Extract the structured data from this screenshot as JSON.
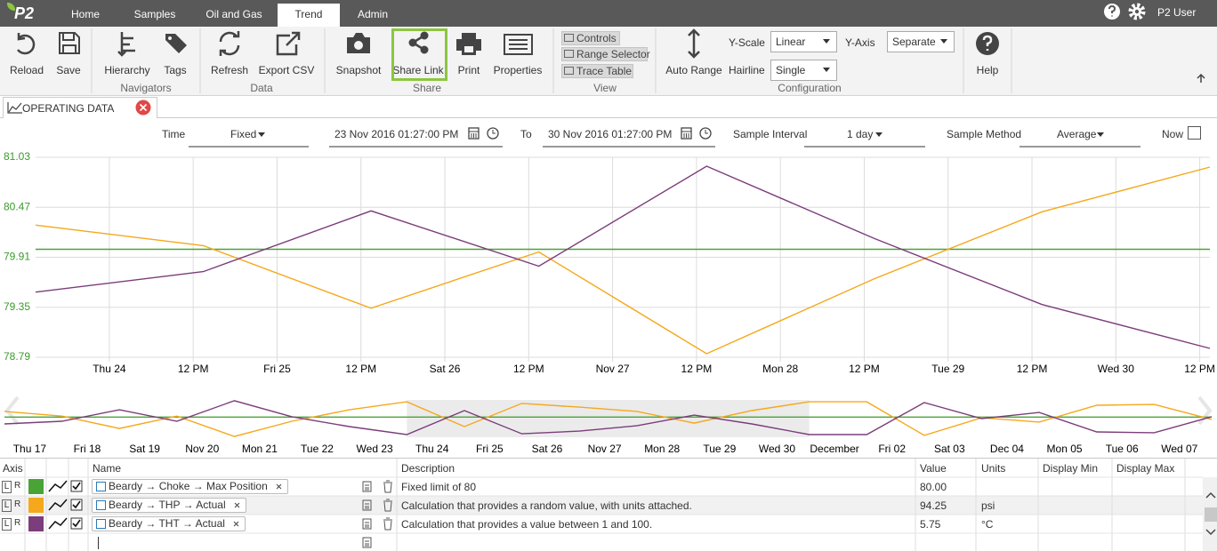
{
  "header": {
    "logo": "P2",
    "tabs": [
      "Home",
      "Samples",
      "Oil and Gas",
      "Trend",
      "Admin"
    ],
    "user": "P2 User"
  },
  "ribbon": {
    "groups": [
      {
        "buttons": [
          "Reload",
          "Save"
        ]
      },
      {
        "label": "Navigators",
        "buttons": [
          "Hierarchy",
          "Tags"
        ]
      },
      {
        "label": "Data",
        "buttons": [
          "Refresh",
          "Export CSV"
        ]
      },
      {
        "label": "Share",
        "buttons": [
          "Snapshot",
          "Share Link",
          "Print",
          "Properties"
        ]
      },
      {
        "label": "View",
        "buttons": [
          "Controls",
          "Range Selector",
          "Trace Table"
        ]
      },
      {
        "label": "Configuration",
        "buttons": [
          "Auto Range"
        ],
        "fields": [
          {
            "label": "Y-Scale",
            "value": "Linear"
          },
          {
            "label": "Hairline",
            "value": "Single"
          },
          {
            "label": "Y-Axis",
            "value": "Separate"
          }
        ]
      },
      {
        "buttons": [
          "Help"
        ]
      }
    ]
  },
  "document_tab": "OPERATING DATA",
  "controls": {
    "time_label": "Time",
    "time_mode": "Fixed",
    "start": "23 Nov 2016 01:27:00 PM",
    "to_label": "To",
    "end": "30 Nov 2016 01:27:00 PM",
    "interval_label": "Sample Interval",
    "interval": "1 day",
    "method_label": "Sample Method",
    "method": "Average",
    "now_label": "Now"
  },
  "chart_data": [
    {
      "type": "line",
      "x": [
        "2016-11-23T13:27",
        "2016-11-24T13:27",
        "2016-11-25T13:27",
        "2016-11-26T13:27",
        "2016-11-27T13:27",
        "2016-11-28T13:27",
        "2016-11-29T13:27",
        "2016-11-30T13:27"
      ],
      "xlim": [
        "2016-11-23T13:27",
        "2016-11-30T13:27"
      ],
      "xticks": [
        {
          "value": "2016-11-24T00:00",
          "label": "Thu 24"
        },
        {
          "value": "2016-11-24T12:00",
          "label": "12 PM"
        },
        {
          "value": "2016-11-25T00:00",
          "label": "Fri 25"
        },
        {
          "value": "2016-11-25T12:00",
          "label": "12 PM"
        },
        {
          "value": "2016-11-26T00:00",
          "label": "Sat 26"
        },
        {
          "value": "2016-11-26T12:00",
          "label": "12 PM"
        },
        {
          "value": "2016-11-27T00:00",
          "label": "Nov 27"
        },
        {
          "value": "2016-11-27T12:00",
          "label": "12 PM"
        },
        {
          "value": "2016-11-28T00:00",
          "label": "Mon 28"
        },
        {
          "value": "2016-11-28T12:00",
          "label": "12 PM"
        },
        {
          "value": "2016-11-29T00:00",
          "label": "Tue 29"
        },
        {
          "value": "2016-11-29T12:00",
          "label": "12 PM"
        },
        {
          "value": "2016-11-30T00:00",
          "label": "Wed 30"
        },
        {
          "value": "2016-11-30T12:00",
          "label": "12 PM"
        }
      ],
      "ylim": [
        78.79,
        81.03
      ],
      "yticks": [
        78.79,
        79.35,
        79.91,
        80.47,
        81.03
      ],
      "grid": true,
      "tick_color": "#3b9a2b",
      "series": [
        {
          "color": "#4aa336",
          "values": [
            80,
            80,
            80,
            80,
            80,
            80,
            80,
            80
          ]
        },
        {
          "color": "#f5a81c",
          "values": [
            80.27,
            80.04,
            79.34,
            79.97,
            78.83,
            79.67,
            80.42,
            80.92
          ]
        },
        {
          "color": "#7b3d7b",
          "values": [
            79.52,
            79.75,
            80.43,
            79.81,
            80.93,
            80.12,
            79.38,
            78.89
          ]
        }
      ]
    },
    {
      "type": "line",
      "x": [
        "2016-11-16T13:27",
        "2016-11-17T13:27",
        "2016-11-18T13:27",
        "2016-11-19T13:27",
        "2016-11-20T13:27",
        "2016-11-21T13:27",
        "2016-11-22T13:27",
        "2016-11-23T13:27",
        "2016-11-24T13:27",
        "2016-11-25T13:27",
        "2016-11-26T13:27",
        "2016-11-27T13:27",
        "2016-11-28T13:27",
        "2016-11-29T13:27",
        "2016-11-30T13:27",
        "2016-12-01T13:27",
        "2016-12-02T13:27",
        "2016-12-03T13:27",
        "2016-12-04T13:27",
        "2016-12-05T13:27",
        "2016-12-06T13:27",
        "2016-12-07T13:27"
      ],
      "xlim": [
        "2016-11-16T13:27",
        "2016-12-07T13:27"
      ],
      "xticks": [
        {
          "value": "2016-11-17T00:00",
          "label": "Thu 17"
        },
        {
          "value": "2016-11-18T00:00",
          "label": "Fri 18"
        },
        {
          "value": "2016-11-19T00:00",
          "label": "Sat 19"
        },
        {
          "value": "2016-11-20T00:00",
          "label": "Nov 20"
        },
        {
          "value": "2016-11-21T00:00",
          "label": "Mon 21"
        },
        {
          "value": "2016-11-22T00:00",
          "label": "Tue 22"
        },
        {
          "value": "2016-11-23T00:00",
          "label": "Wed 23"
        },
        {
          "value": "2016-11-24T00:00",
          "label": "Thu 24"
        },
        {
          "value": "2016-11-25T00:00",
          "label": "Fri 25"
        },
        {
          "value": "2016-11-26T00:00",
          "label": "Sat 26"
        },
        {
          "value": "2016-11-27T00:00",
          "label": "Nov 27"
        },
        {
          "value": "2016-11-28T00:00",
          "label": "Mon 28"
        },
        {
          "value": "2016-11-29T00:00",
          "label": "Tue 29"
        },
        {
          "value": "2016-11-30T00:00",
          "label": "Wed 30"
        },
        {
          "value": "2016-12-01T00:00",
          "label": "December"
        },
        {
          "value": "2016-12-02T00:00",
          "label": "Fri 02"
        },
        {
          "value": "2016-12-03T00:00",
          "label": "Sat 03"
        },
        {
          "value": "2016-12-04T00:00",
          "label": "Dec 04"
        },
        {
          "value": "2016-12-05T00:00",
          "label": "Mon 05"
        },
        {
          "value": "2016-12-06T00:00",
          "label": "Tue 06"
        },
        {
          "value": "2016-12-07T00:00",
          "label": "Wed 07"
        }
      ],
      "ylim": [
        78.79,
        81.03
      ],
      "series": [
        {
          "color": "#4aa336",
          "values": [
            80,
            80,
            80,
            80,
            80,
            80,
            80,
            80,
            80,
            80,
            80,
            80,
            80,
            80,
            80,
            80,
            80,
            80,
            80,
            80,
            80,
            80
          ]
        },
        {
          "color": "#f5a81c",
          "values": [
            80.34,
            80.06,
            79.32,
            80.06,
            78.84,
            79.75,
            80.44,
            80.92,
            79.43,
            80.82,
            80.6,
            80.34,
            79.64,
            80.39,
            80.92,
            80.92,
            78.9,
            79.96,
            79.7,
            80.71,
            80.76,
            79.86
          ]
        },
        {
          "color": "#7b3d7b",
          "values": [
            79.59,
            79.75,
            80.44,
            79.75,
            80.98,
            80.02,
            79.43,
            78.95,
            80.39,
            79.0,
            79.16,
            79.48,
            80.12,
            79.59,
            78.95,
            78.95,
            80.87,
            79.91,
            80.28,
            79.11,
            79.06,
            80.02
          ]
        }
      ]
    }
  ],
  "table": {
    "headers": [
      "Axis",
      "Name",
      "Description",
      "Value",
      "Units",
      "Display Min",
      "Display Max"
    ],
    "rows": [
      {
        "axis": [
          "L",
          "R"
        ],
        "name": "Beardy → Choke → Max Position",
        "description": "Fixed limit of 80",
        "value": "80.00"
      },
      {
        "axis": [
          "L",
          "R"
        ],
        "name": "Beardy → THP → Actual",
        "description": "Calculation that provides a random value, with units attached.",
        "value": "94.25",
        "units": "psi"
      },
      {
        "axis": [
          "L",
          "R"
        ],
        "name": "Beardy → THT → Actual",
        "description": "Calculation that provides a value between 1 and 100.",
        "value": "5.75",
        "units": "°C"
      }
    ]
  }
}
